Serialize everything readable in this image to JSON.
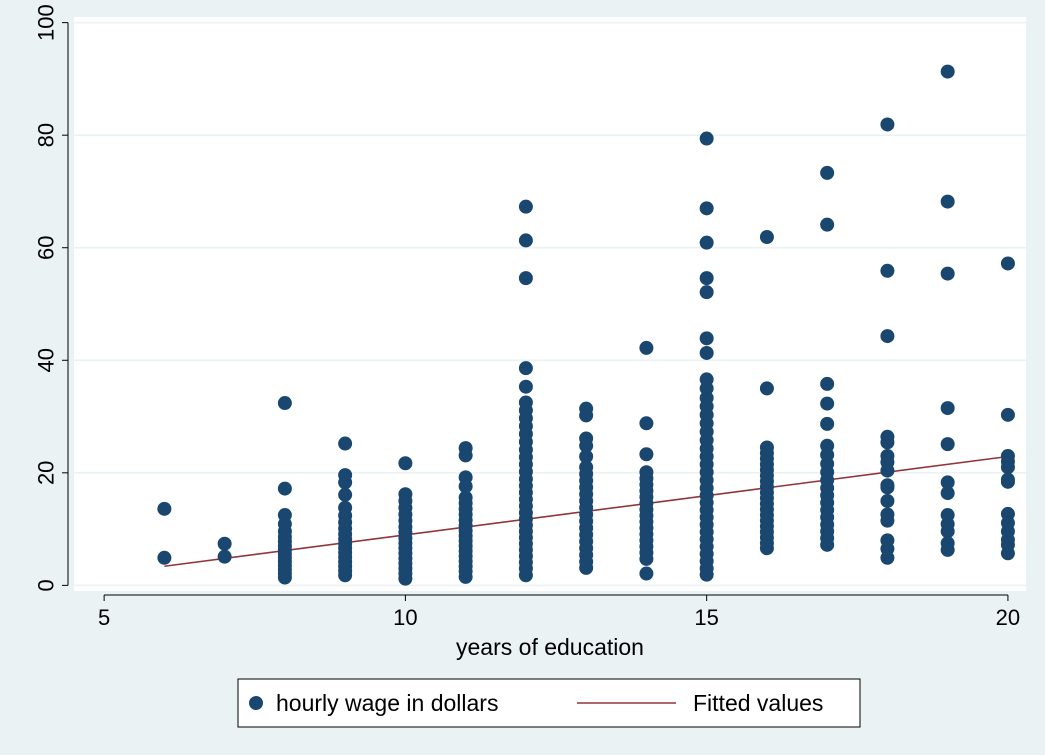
{
  "chart_data": {
    "type": "scatter",
    "xlabel": "years of education",
    "ylabel": "",
    "xlim": [
      4.5,
      20.3
    ],
    "ylim": [
      -1,
      101
    ],
    "xticks": [
      5,
      10,
      15,
      20
    ],
    "yticks": [
      0,
      20,
      40,
      60,
      80,
      100
    ],
    "grid": true,
    "legend_position": "bottom",
    "colors": {
      "points": "#1a476f",
      "fit": "#90353b",
      "plot_bg": "#ffffff",
      "outer_bg": "#eaf2f3",
      "grid": "#eaf2f3"
    },
    "series": [
      {
        "name": "hourly wage in dollars",
        "kind": "scatter",
        "points": [
          [
            6,
            13.6
          ],
          [
            6,
            4.9
          ],
          [
            7,
            7.4
          ],
          [
            7,
            5.1
          ],
          [
            8,
            32.4
          ],
          [
            8,
            17.2
          ],
          [
            8,
            12.5
          ],
          [
            8,
            10.9
          ],
          [
            8,
            9.6
          ],
          [
            8,
            8.6
          ],
          [
            8,
            7.8
          ],
          [
            8,
            7.0
          ],
          [
            8,
            6.3
          ],
          [
            8,
            5.6
          ],
          [
            8,
            4.9
          ],
          [
            8,
            4.2
          ],
          [
            8,
            3.5
          ],
          [
            8,
            2.8
          ],
          [
            8,
            2.1
          ],
          [
            8,
            1.4
          ],
          [
            9,
            25.2
          ],
          [
            9,
            19.6
          ],
          [
            9,
            18.3
          ],
          [
            9,
            16.1
          ],
          [
            9,
            13.8
          ],
          [
            9,
            12.4
          ],
          [
            9,
            11.2
          ],
          [
            9,
            10.1
          ],
          [
            9,
            9.1
          ],
          [
            9,
            8.2
          ],
          [
            9,
            7.4
          ],
          [
            9,
            6.6
          ],
          [
            9,
            5.8
          ],
          [
            9,
            5.0
          ],
          [
            9,
            4.2
          ],
          [
            9,
            3.4
          ],
          [
            9,
            2.6
          ],
          [
            9,
            1.8
          ],
          [
            10,
            21.7
          ],
          [
            10,
            16.2
          ],
          [
            10,
            15.0
          ],
          [
            10,
            13.8
          ],
          [
            10,
            12.6
          ],
          [
            10,
            11.5
          ],
          [
            10,
            10.4
          ],
          [
            10,
            9.4
          ],
          [
            10,
            8.4
          ],
          [
            10,
            7.5
          ],
          [
            10,
            6.6
          ],
          [
            10,
            5.7
          ],
          [
            10,
            4.8
          ],
          [
            10,
            3.9
          ],
          [
            10,
            3.0
          ],
          [
            10,
            2.1
          ],
          [
            10,
            1.2
          ],
          [
            11,
            24.4
          ],
          [
            11,
            23.1
          ],
          [
            11,
            19.2
          ],
          [
            11,
            17.6
          ],
          [
            11,
            15.6
          ],
          [
            11,
            14.6
          ],
          [
            11,
            13.6
          ],
          [
            11,
            12.6
          ],
          [
            11,
            11.6
          ],
          [
            11,
            10.6
          ],
          [
            11,
            9.7
          ],
          [
            11,
            8.8
          ],
          [
            11,
            7.9
          ],
          [
            11,
            7.0
          ],
          [
            11,
            6.1
          ],
          [
            11,
            5.2
          ],
          [
            11,
            4.3
          ],
          [
            11,
            3.4
          ],
          [
            11,
            2.5
          ],
          [
            11,
            1.5
          ],
          [
            12,
            67.3
          ],
          [
            12,
            61.3
          ],
          [
            12,
            54.6
          ],
          [
            12,
            38.6
          ],
          [
            12,
            35.3
          ],
          [
            12,
            32.5
          ],
          [
            12,
            31.1
          ],
          [
            12,
            29.7
          ],
          [
            12,
            28.3
          ],
          [
            12,
            26.9
          ],
          [
            12,
            25.5
          ],
          [
            12,
            24.1
          ],
          [
            12,
            22.8
          ],
          [
            12,
            21.5
          ],
          [
            12,
            20.2
          ],
          [
            12,
            18.9
          ],
          [
            12,
            17.7
          ],
          [
            12,
            16.5
          ],
          [
            12,
            15.3
          ],
          [
            12,
            14.1
          ],
          [
            12,
            12.9
          ],
          [
            12,
            11.8
          ],
          [
            12,
            10.7
          ],
          [
            12,
            9.6
          ],
          [
            12,
            8.5
          ],
          [
            12,
            7.4
          ],
          [
            12,
            6.3
          ],
          [
            12,
            5.2
          ],
          [
            12,
            4.1
          ],
          [
            12,
            3.0
          ],
          [
            12,
            1.8
          ],
          [
            13,
            31.4
          ],
          [
            13,
            30.2
          ],
          [
            13,
            26.1
          ],
          [
            13,
            24.8
          ],
          [
            13,
            22.9
          ],
          [
            13,
            21.0
          ],
          [
            13,
            19.8
          ],
          [
            13,
            18.6
          ],
          [
            13,
            17.4
          ],
          [
            13,
            16.2
          ],
          [
            13,
            15.0
          ],
          [
            13,
            13.8
          ],
          [
            13,
            12.6
          ],
          [
            13,
            11.4
          ],
          [
            13,
            10.2
          ],
          [
            13,
            9.0
          ],
          [
            13,
            7.8
          ],
          [
            13,
            6.6
          ],
          [
            13,
            5.4
          ],
          [
            13,
            4.2
          ],
          [
            13,
            3.1
          ],
          [
            14,
            42.2
          ],
          [
            14,
            28.8
          ],
          [
            14,
            23.3
          ],
          [
            14,
            20.1
          ],
          [
            14,
            19.0
          ],
          [
            14,
            17.9
          ],
          [
            14,
            16.8
          ],
          [
            14,
            15.7
          ],
          [
            14,
            14.6
          ],
          [
            14,
            13.5
          ],
          [
            14,
            12.4
          ],
          [
            14,
            11.3
          ],
          [
            14,
            10.2
          ],
          [
            14,
            9.1
          ],
          [
            14,
            8.0
          ],
          [
            14,
            6.9
          ],
          [
            14,
            5.8
          ],
          [
            14,
            4.7
          ],
          [
            14,
            2.1
          ],
          [
            15,
            79.4
          ],
          [
            15,
            67.0
          ],
          [
            15,
            60.9
          ],
          [
            15,
            54.6
          ],
          [
            15,
            52.1
          ],
          [
            15,
            43.9
          ],
          [
            15,
            41.3
          ],
          [
            15,
            36.6
          ],
          [
            15,
            35.0
          ],
          [
            15,
            33.3
          ],
          [
            15,
            31.8
          ],
          [
            15,
            30.3
          ],
          [
            15,
            28.8
          ],
          [
            15,
            27.3
          ],
          [
            15,
            25.8
          ],
          [
            15,
            24.3
          ],
          [
            15,
            22.9
          ],
          [
            15,
            21.5
          ],
          [
            15,
            20.1
          ],
          [
            15,
            18.7
          ],
          [
            15,
            17.3
          ],
          [
            15,
            16.0
          ],
          [
            15,
            14.7
          ],
          [
            15,
            13.4
          ],
          [
            15,
            12.1
          ],
          [
            15,
            10.8
          ],
          [
            15,
            9.5
          ],
          [
            15,
            8.2
          ],
          [
            15,
            6.9
          ],
          [
            15,
            5.6
          ],
          [
            15,
            4.3
          ],
          [
            15,
            3.0
          ],
          [
            15,
            1.9
          ],
          [
            16,
            61.9
          ],
          [
            16,
            35.0
          ],
          [
            16,
            24.5
          ],
          [
            16,
            23.5
          ],
          [
            16,
            22.5
          ],
          [
            16,
            21.5
          ],
          [
            16,
            20.5
          ],
          [
            16,
            19.5
          ],
          [
            16,
            18.5
          ],
          [
            16,
            17.5
          ],
          [
            16,
            16.5
          ],
          [
            16,
            15.5
          ],
          [
            16,
            14.5
          ],
          [
            16,
            13.5
          ],
          [
            16,
            12.5
          ],
          [
            16,
            11.5
          ],
          [
            16,
            10.5
          ],
          [
            16,
            9.5
          ],
          [
            16,
            8.5
          ],
          [
            16,
            7.5
          ],
          [
            16,
            6.6
          ],
          [
            17,
            73.3
          ],
          [
            17,
            64.1
          ],
          [
            17,
            35.8
          ],
          [
            17,
            32.3
          ],
          [
            17,
            28.7
          ],
          [
            17,
            24.8
          ],
          [
            17,
            23.2
          ],
          [
            17,
            21.6
          ],
          [
            17,
            20.1
          ],
          [
            17,
            18.7
          ],
          [
            17,
            17.3
          ],
          [
            17,
            16.0
          ],
          [
            17,
            14.7
          ],
          [
            17,
            13.4
          ],
          [
            17,
            12.1
          ],
          [
            17,
            10.8
          ],
          [
            17,
            9.6
          ],
          [
            17,
            8.4
          ],
          [
            17,
            7.2
          ],
          [
            18,
            81.9
          ],
          [
            18,
            55.9
          ],
          [
            18,
            44.3
          ],
          [
            18,
            26.4
          ],
          [
            18,
            25.4
          ],
          [
            18,
            23.0
          ],
          [
            18,
            21.9
          ],
          [
            18,
            20.4
          ],
          [
            18,
            17.8
          ],
          [
            18,
            17.4
          ],
          [
            18,
            15.0
          ],
          [
            18,
            12.6
          ],
          [
            18,
            11.5
          ],
          [
            18,
            8.0
          ],
          [
            18,
            6.5
          ],
          [
            18,
            4.9
          ],
          [
            19,
            91.3
          ],
          [
            19,
            68.2
          ],
          [
            19,
            55.4
          ],
          [
            19,
            31.5
          ],
          [
            19,
            25.1
          ],
          [
            19,
            18.3
          ],
          [
            19,
            16.4
          ],
          [
            19,
            12.5
          ],
          [
            19,
            10.9
          ],
          [
            19,
            9.6
          ],
          [
            19,
            7.5
          ],
          [
            19,
            6.3
          ],
          [
            20,
            57.2
          ],
          [
            20,
            30.3
          ],
          [
            20,
            23.0
          ],
          [
            20,
            22.0
          ],
          [
            20,
            21.0
          ],
          [
            20,
            18.8
          ],
          [
            20,
            18.4
          ],
          [
            20,
            12.7
          ],
          [
            20,
            11.1
          ],
          [
            20,
            9.6
          ],
          [
            20,
            8.1
          ],
          [
            20,
            7.2
          ],
          [
            20,
            5.7
          ]
        ]
      },
      {
        "name": "Fitted values",
        "kind": "line",
        "points": [
          [
            6,
            3.4
          ],
          [
            20,
            22.9
          ]
        ]
      }
    ]
  }
}
